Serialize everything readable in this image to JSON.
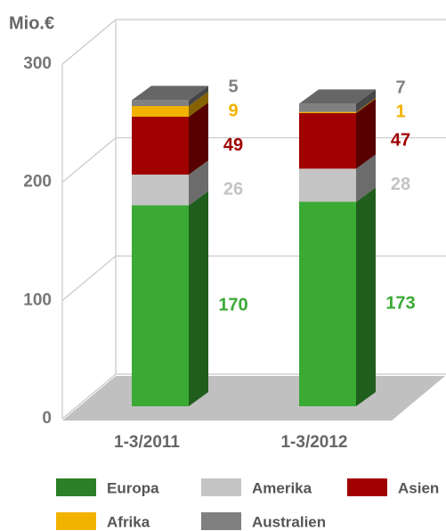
{
  "chart_data": {
    "type": "bar3d_stacked",
    "y_label": "Mio.€",
    "categories": [
      "1-3/2011",
      "1-3/2012"
    ],
    "series": [
      {
        "name": "Europa",
        "color": "#3aaa35",
        "values": [
          170,
          173
        ]
      },
      {
        "name": "Amerika",
        "color": "#c4c4c4",
        "values": [
          26,
          28
        ]
      },
      {
        "name": "Asien",
        "color": "#a00000",
        "values": [
          49,
          47
        ]
      },
      {
        "name": "Afrika",
        "color": "#f2b200",
        "values": [
          9,
          1
        ]
      },
      {
        "name": "Australien",
        "color": "#808080",
        "values": [
          5,
          7
        ]
      }
    ],
    "ylim": [
      0,
      300
    ],
    "yticks": [
      0,
      100,
      200,
      300
    ],
    "grid": true
  }
}
